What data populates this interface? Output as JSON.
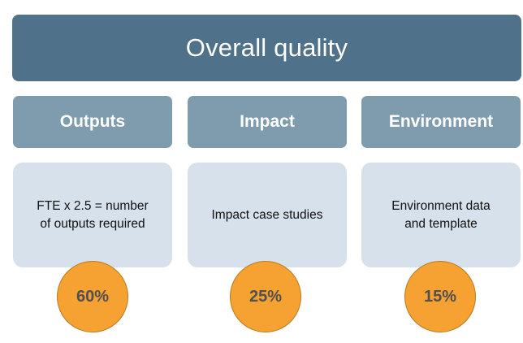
{
  "title": "Overall quality",
  "columns": [
    {
      "header": "Outputs",
      "description": "FTE x 2.5 = number of outputs required",
      "weight": "60%"
    },
    {
      "header": "Impact",
      "description": "Impact case studies",
      "weight": "25%"
    },
    {
      "header": "Environment",
      "description": "Environment data and template",
      "weight": "15%"
    }
  ],
  "colors": {
    "banner": "#4f7189",
    "header": "#7f9cae",
    "box": "#d6e1ec",
    "circle": "#f6a232"
  }
}
